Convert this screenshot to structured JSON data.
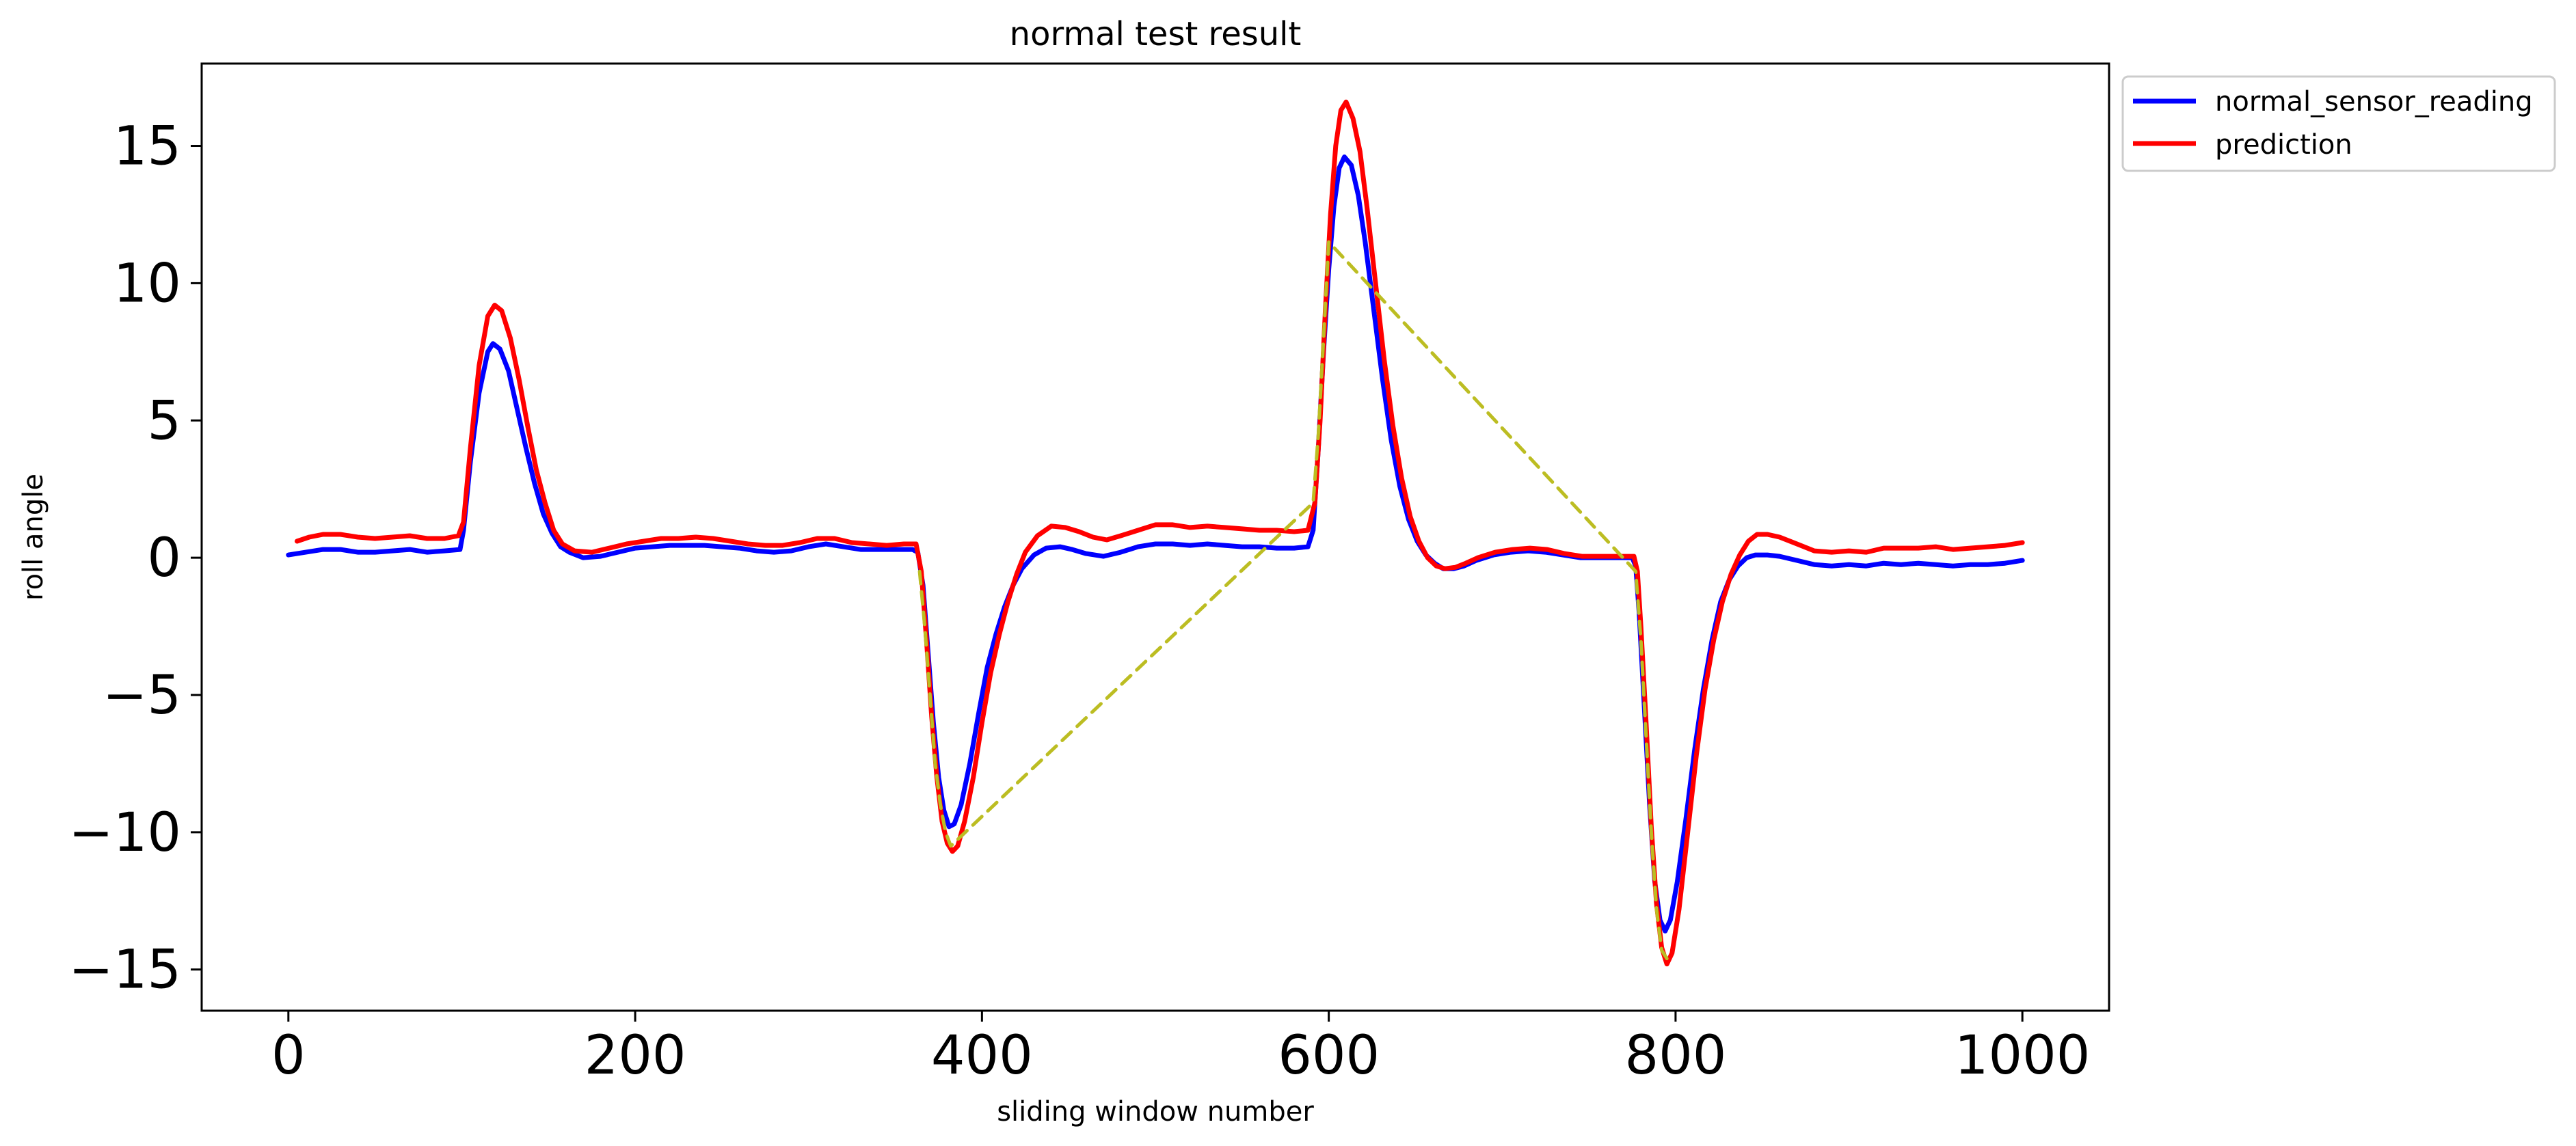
{
  "chart_data": {
    "type": "line",
    "title": "normal test result",
    "xlabel": "sliding window number",
    "ylabel": "roll angle",
    "xlim": [
      -50,
      1050
    ],
    "ylim": [
      -16.5,
      18
    ],
    "xticks": [
      0,
      200,
      400,
      600,
      800,
      1000
    ],
    "yticks": [
      15,
      10,
      5,
      0,
      -5,
      -10,
      -15
    ],
    "xtick_labels": [
      "0",
      "200",
      "400",
      "600",
      "800",
      "1000"
    ],
    "ytick_labels": [
      "15",
      "10",
      "5",
      "0",
      "−5",
      "−10",
      "−15"
    ],
    "grid": false,
    "legend_position": "outside-top-right",
    "series": [
      {
        "name": "normal_sensor_reading",
        "color": "#0000ff",
        "points": [
          [
            0,
            0.1
          ],
          [
            10,
            0.2
          ],
          [
            20,
            0.3
          ],
          [
            30,
            0.3
          ],
          [
            40,
            0.2
          ],
          [
            50,
            0.2
          ],
          [
            60,
            0.25
          ],
          [
            70,
            0.3
          ],
          [
            80,
            0.2
          ],
          [
            90,
            0.25
          ],
          [
            99,
            0.3
          ],
          [
            101,
            1.0
          ],
          [
            105,
            3.5
          ],
          [
            110,
            6.0
          ],
          [
            115,
            7.5
          ],
          [
            118,
            7.8
          ],
          [
            122,
            7.6
          ],
          [
            127,
            6.8
          ],
          [
            132,
            5.4
          ],
          [
            137,
            4.0
          ],
          [
            142,
            2.7
          ],
          [
            147,
            1.6
          ],
          [
            152,
            0.9
          ],
          [
            157,
            0.4
          ],
          [
            162,
            0.2
          ],
          [
            170,
            0.0
          ],
          [
            180,
            0.05
          ],
          [
            190,
            0.2
          ],
          [
            200,
            0.35
          ],
          [
            210,
            0.4
          ],
          [
            220,
            0.45
          ],
          [
            230,
            0.45
          ],
          [
            240,
            0.45
          ],
          [
            250,
            0.4
          ],
          [
            260,
            0.35
          ],
          [
            270,
            0.25
          ],
          [
            280,
            0.2
          ],
          [
            290,
            0.25
          ],
          [
            300,
            0.4
          ],
          [
            310,
            0.5
          ],
          [
            320,
            0.4
          ],
          [
            330,
            0.3
          ],
          [
            340,
            0.3
          ],
          [
            350,
            0.3
          ],
          [
            360,
            0.3
          ],
          [
            363,
            0.2
          ],
          [
            366,
            -1.0
          ],
          [
            369,
            -3.5
          ],
          [
            372,
            -6.0
          ],
          [
            375,
            -8.0
          ],
          [
            378,
            -9.2
          ],
          [
            381,
            -9.8
          ],
          [
            384,
            -9.7
          ],
          [
            388,
            -9.0
          ],
          [
            393,
            -7.5
          ],
          [
            398,
            -5.7
          ],
          [
            403,
            -4.0
          ],
          [
            408,
            -2.8
          ],
          [
            413,
            -1.8
          ],
          [
            418,
            -1.0
          ],
          [
            423,
            -0.4
          ],
          [
            430,
            0.1
          ],
          [
            437,
            0.35
          ],
          [
            445,
            0.4
          ],
          [
            452,
            0.3
          ],
          [
            460,
            0.15
          ],
          [
            470,
            0.05
          ],
          [
            480,
            0.2
          ],
          [
            490,
            0.4
          ],
          [
            500,
            0.5
          ],
          [
            510,
            0.5
          ],
          [
            520,
            0.45
          ],
          [
            530,
            0.5
          ],
          [
            540,
            0.45
          ],
          [
            550,
            0.4
          ],
          [
            560,
            0.4
          ],
          [
            570,
            0.35
          ],
          [
            580,
            0.35
          ],
          [
            588,
            0.4
          ],
          [
            591,
            1.0
          ],
          [
            594,
            4.0
          ],
          [
            597,
            7.5
          ],
          [
            600,
            10.5
          ],
          [
            603,
            12.8
          ],
          [
            606,
            14.2
          ],
          [
            609,
            14.6
          ],
          [
            613,
            14.3
          ],
          [
            617,
            13.2
          ],
          [
            621,
            11.5
          ],
          [
            626,
            9.0
          ],
          [
            631,
            6.5
          ],
          [
            636,
            4.3
          ],
          [
            641,
            2.6
          ],
          [
            646,
            1.4
          ],
          [
            651,
            0.6
          ],
          [
            656,
            0.1
          ],
          [
            661,
            -0.2
          ],
          [
            666,
            -0.4
          ],
          [
            672,
            -0.4
          ],
          [
            678,
            -0.3
          ],
          [
            685,
            -0.1
          ],
          [
            695,
            0.1
          ],
          [
            705,
            0.2
          ],
          [
            715,
            0.25
          ],
          [
            725,
            0.2
          ],
          [
            735,
            0.1
          ],
          [
            745,
            0.0
          ],
          [
            755,
            0.0
          ],
          [
            765,
            0.0
          ],
          [
            775,
            0.0
          ],
          [
            777,
            -0.3
          ],
          [
            779,
            -2.0
          ],
          [
            782,
            -5.5
          ],
          [
            785,
            -9.0
          ],
          [
            788,
            -11.8
          ],
          [
            791,
            -13.2
          ],
          [
            794,
            -13.6
          ],
          [
            797,
            -13.2
          ],
          [
            801,
            -11.8
          ],
          [
            806,
            -9.5
          ],
          [
            811,
            -7.0
          ],
          [
            816,
            -4.8
          ],
          [
            821,
            -3.0
          ],
          [
            826,
            -1.6
          ],
          [
            831,
            -0.8
          ],
          [
            836,
            -0.3
          ],
          [
            841,
            0.0
          ],
          [
            846,
            0.1
          ],
          [
            853,
            0.1
          ],
          [
            860,
            0.05
          ],
          [
            870,
            -0.1
          ],
          [
            880,
            -0.25
          ],
          [
            890,
            -0.3
          ],
          [
            900,
            -0.25
          ],
          [
            910,
            -0.3
          ],
          [
            920,
            -0.2
          ],
          [
            930,
            -0.25
          ],
          [
            940,
            -0.2
          ],
          [
            950,
            -0.25
          ],
          [
            960,
            -0.3
          ],
          [
            970,
            -0.25
          ],
          [
            980,
            -0.25
          ],
          [
            990,
            -0.2
          ],
          [
            1000,
            -0.1
          ]
        ]
      },
      {
        "name": "prediction",
        "color": "#ff0000",
        "points": [
          [
            5,
            0.6
          ],
          [
            12,
            0.75
          ],
          [
            20,
            0.85
          ],
          [
            30,
            0.85
          ],
          [
            40,
            0.75
          ],
          [
            50,
            0.7
          ],
          [
            60,
            0.75
          ],
          [
            70,
            0.8
          ],
          [
            80,
            0.7
          ],
          [
            90,
            0.7
          ],
          [
            98,
            0.8
          ],
          [
            101,
            1.3
          ],
          [
            105,
            4.0
          ],
          [
            110,
            7.0
          ],
          [
            115,
            8.8
          ],
          [
            119,
            9.2
          ],
          [
            123,
            9.0
          ],
          [
            128,
            8.0
          ],
          [
            133,
            6.5
          ],
          [
            138,
            4.8
          ],
          [
            143,
            3.2
          ],
          [
            148,
            2.0
          ],
          [
            153,
            1.0
          ],
          [
            158,
            0.5
          ],
          [
            165,
            0.25
          ],
          [
            175,
            0.2
          ],
          [
            185,
            0.35
          ],
          [
            195,
            0.5
          ],
          [
            205,
            0.6
          ],
          [
            215,
            0.7
          ],
          [
            225,
            0.7
          ],
          [
            235,
            0.75
          ],
          [
            245,
            0.7
          ],
          [
            255,
            0.6
          ],
          [
            265,
            0.5
          ],
          [
            275,
            0.45
          ],
          [
            285,
            0.45
          ],
          [
            295,
            0.55
          ],
          [
            305,
            0.7
          ],
          [
            315,
            0.7
          ],
          [
            325,
            0.55
          ],
          [
            335,
            0.5
          ],
          [
            345,
            0.45
          ],
          [
            355,
            0.5
          ],
          [
            362,
            0.5
          ],
          [
            365,
            -0.5
          ],
          [
            368,
            -3.0
          ],
          [
            371,
            -5.8
          ],
          [
            374,
            -8.0
          ],
          [
            377,
            -9.6
          ],
          [
            380,
            -10.4
          ],
          [
            383,
            -10.7
          ],
          [
            386,
            -10.5
          ],
          [
            390,
            -9.6
          ],
          [
            395,
            -8.0
          ],
          [
            400,
            -6.0
          ],
          [
            405,
            -4.2
          ],
          [
            410,
            -2.8
          ],
          [
            415,
            -1.6
          ],
          [
            420,
            -0.6
          ],
          [
            425,
            0.2
          ],
          [
            432,
            0.8
          ],
          [
            440,
            1.15
          ],
          [
            448,
            1.1
          ],
          [
            456,
            0.95
          ],
          [
            464,
            0.75
          ],
          [
            472,
            0.65
          ],
          [
            480,
            0.8
          ],
          [
            490,
            1.0
          ],
          [
            500,
            1.2
          ],
          [
            510,
            1.2
          ],
          [
            520,
            1.1
          ],
          [
            530,
            1.15
          ],
          [
            540,
            1.1
          ],
          [
            550,
            1.05
          ],
          [
            560,
            1.0
          ],
          [
            570,
            1.0
          ],
          [
            580,
            0.95
          ],
          [
            588,
            1.0
          ],
          [
            592,
            2.0
          ],
          [
            595,
            5.0
          ],
          [
            598,
            9.0
          ],
          [
            601,
            12.5
          ],
          [
            604,
            15.0
          ],
          [
            607,
            16.3
          ],
          [
            610,
            16.6
          ],
          [
            614,
            16.0
          ],
          [
            618,
            14.8
          ],
          [
            622,
            12.8
          ],
          [
            627,
            10.0
          ],
          [
            632,
            7.2
          ],
          [
            637,
            4.8
          ],
          [
            642,
            2.9
          ],
          [
            647,
            1.5
          ],
          [
            652,
            0.6
          ],
          [
            657,
            0.0
          ],
          [
            662,
            -0.3
          ],
          [
            667,
            -0.4
          ],
          [
            673,
            -0.35
          ],
          [
            679,
            -0.2
          ],
          [
            686,
            0.0
          ],
          [
            696,
            0.2
          ],
          [
            706,
            0.3
          ],
          [
            716,
            0.35
          ],
          [
            726,
            0.3
          ],
          [
            736,
            0.15
          ],
          [
            746,
            0.05
          ],
          [
            756,
            0.05
          ],
          [
            766,
            0.05
          ],
          [
            776,
            0.05
          ],
          [
            778,
            -0.5
          ],
          [
            780,
            -2.5
          ],
          [
            783,
            -6.0
          ],
          [
            786,
            -9.8
          ],
          [
            789,
            -12.6
          ],
          [
            792,
            -14.2
          ],
          [
            795,
            -14.8
          ],
          [
            798,
            -14.4
          ],
          [
            802,
            -12.8
          ],
          [
            807,
            -10.0
          ],
          [
            812,
            -7.2
          ],
          [
            817,
            -4.8
          ],
          [
            822,
            -3.0
          ],
          [
            827,
            -1.6
          ],
          [
            832,
            -0.6
          ],
          [
            837,
            0.1
          ],
          [
            842,
            0.6
          ],
          [
            847,
            0.85
          ],
          [
            853,
            0.85
          ],
          [
            860,
            0.75
          ],
          [
            870,
            0.5
          ],
          [
            880,
            0.25
          ],
          [
            890,
            0.2
          ],
          [
            900,
            0.25
          ],
          [
            910,
            0.2
          ],
          [
            920,
            0.35
          ],
          [
            930,
            0.35
          ],
          [
            940,
            0.35
          ],
          [
            950,
            0.4
          ],
          [
            960,
            0.3
          ],
          [
            970,
            0.35
          ],
          [
            980,
            0.4
          ],
          [
            990,
            0.45
          ],
          [
            1000,
            0.55
          ]
        ]
      },
      {
        "color": "#bcbd22",
        "dashed": true,
        "points": [
          [
            364,
            -0.5
          ],
          [
            367,
            -2.5
          ],
          [
            370,
            -5.0
          ],
          [
            373,
            -7.5
          ],
          [
            376,
            -9.0
          ],
          [
            379,
            -10.0
          ],
          [
            382,
            -10.5
          ],
          [
            591,
            2.0
          ],
          [
            594,
            4.5
          ],
          [
            597,
            8.0
          ],
          [
            600,
            11.5
          ],
          [
            777,
            -0.5
          ],
          [
            780,
            -3.0
          ],
          [
            783,
            -6.5
          ],
          [
            786,
            -10.0
          ],
          [
            789,
            -12.8
          ],
          [
            792,
            -14.3
          ],
          [
            795,
            -14.6
          ]
        ]
      }
    ]
  }
}
